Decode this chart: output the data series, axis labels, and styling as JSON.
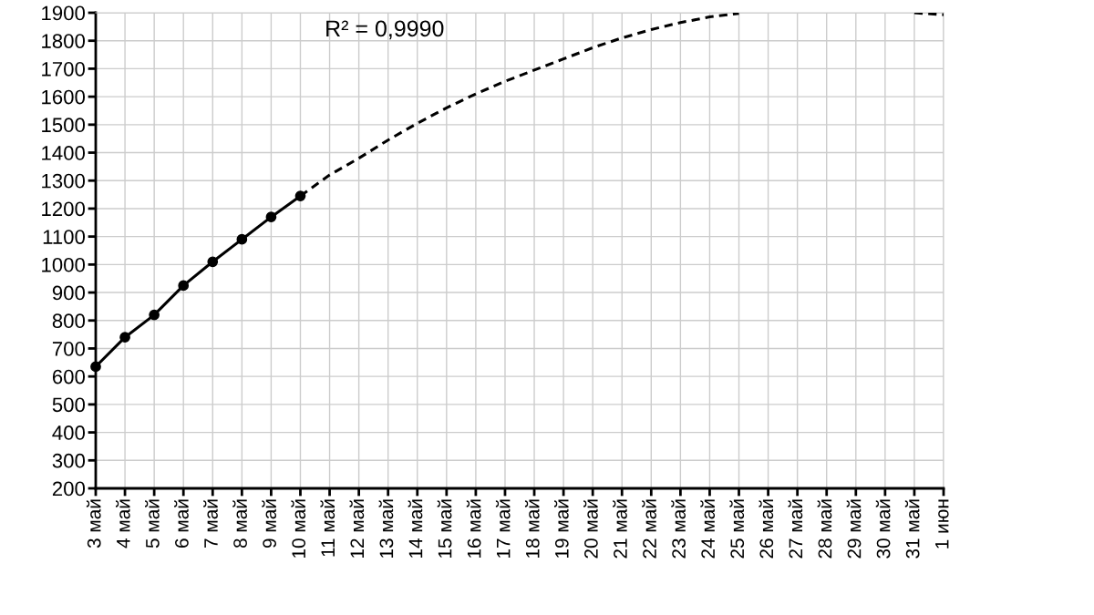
{
  "chart_data": {
    "type": "line",
    "categories": [
      "3 май",
      "4 май",
      "5 май",
      "6 май",
      "7 май",
      "8 май",
      "9 май",
      "10 май",
      "11 май",
      "12 май",
      "13 май",
      "14 май",
      "15 май",
      "16 май",
      "17 май",
      "18 май",
      "19 май",
      "20 май",
      "21 май",
      "22 май",
      "23 май",
      "24 май",
      "25 май",
      "26 май",
      "27 май",
      "28 май",
      "29 май",
      "30 май",
      "31 май",
      "1 июн"
    ],
    "series": [
      {
        "color": "#000000",
        "marker": "circle",
        "line_style": "solid",
        "values": [
          635,
          740,
          820,
          925,
          1010,
          1090,
          1170,
          1245,
          null,
          null,
          null,
          null,
          null,
          null,
          null,
          null,
          null,
          null,
          null,
          null,
          null,
          null,
          null,
          null,
          null,
          null,
          null,
          null,
          null,
          null
        ]
      },
      {
        "color": "#000000",
        "marker": "none",
        "line_style": "dashed",
        "values": [
          null,
          null,
          null,
          null,
          null,
          null,
          null,
          1245,
          1320,
          1380,
          1445,
          1505,
          1560,
          1610,
          1655,
          1695,
          1735,
          1775,
          1810,
          1840,
          1865,
          1885,
          1898,
          null,
          null,
          null,
          null,
          null,
          1900,
          1893
        ]
      }
    ],
    "ylim": [
      200,
      1900
    ],
    "yticks": [
      200,
      300,
      400,
      500,
      600,
      700,
      800,
      900,
      1000,
      1100,
      1200,
      1300,
      1400,
      1500,
      1600,
      1700,
      1800,
      1900
    ],
    "grid": true,
    "annotations": [
      "R² = 0,9990"
    ]
  }
}
